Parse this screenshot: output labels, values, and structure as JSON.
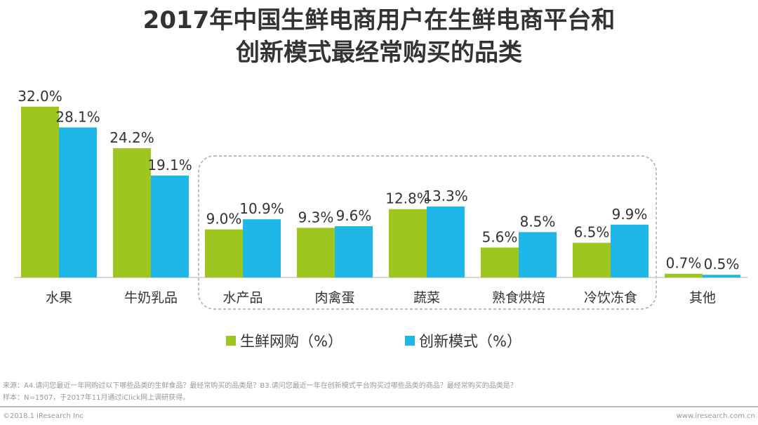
{
  "chart_data": {
    "type": "bar",
    "title": "2017年中国生鲜电商用户在生鲜电商平台和创新模式最经常购买的品类",
    "categories": [
      "水果",
      "牛奶乳品",
      "水产品",
      "肉禽蛋",
      "蔬菜",
      "熟食烘焙",
      "冷饮冻食",
      "其他"
    ],
    "series": [
      {
        "name": "生鲜网购（%）",
        "color": "#9dc61e",
        "values": [
          32.0,
          24.2,
          9.0,
          9.3,
          12.8,
          5.6,
          6.5,
          0.7
        ]
      },
      {
        "name": "创新模式（%）",
        "color": "#1fb6e8",
        "values": [
          28.1,
          19.1,
          10.9,
          9.6,
          13.3,
          8.5,
          9.9,
          0.5
        ]
      }
    ],
    "legend_position": "bottom",
    "grid": false,
    "highlight": "dashed box around 水产品 to 冷饮冻食"
  },
  "footer": {
    "source": "来源：A4.请问您最近一年网购过以下哪些品类的生鲜食品？最经常购买的品类是？B3.请问您最近一年在创新模式平台购买过哪些品类的商品？最经常购买的品类是？",
    "sample": "样本：N=1507，于2017年11月通过iClick网上调研获得。",
    "copyright": "©2018.1 iResearch Inc",
    "website": "www.iresearch.com.cn"
  }
}
